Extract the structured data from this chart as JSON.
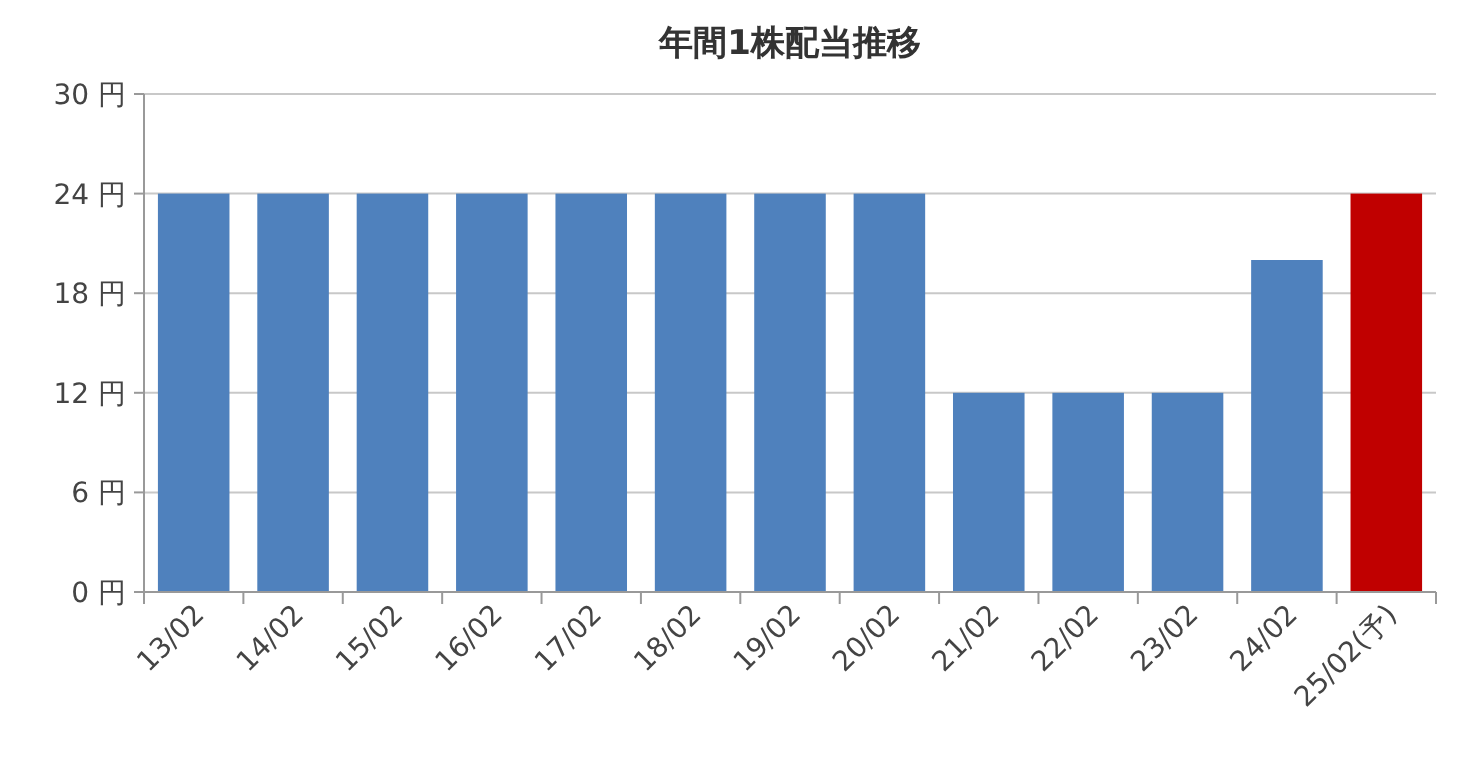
{
  "chart_data": {
    "type": "bar",
    "title": "年間1株配当推移",
    "categories": [
      "13/02",
      "14/02",
      "15/02",
      "16/02",
      "17/02",
      "18/02",
      "19/02",
      "20/02",
      "21/02",
      "22/02",
      "23/02",
      "24/02",
      "25/02(予)"
    ],
    "values": [
      24,
      24,
      24,
      24,
      24,
      24,
      24,
      24,
      12,
      12,
      12,
      20,
      24
    ],
    "colors": [
      "#4f81bd",
      "#4f81bd",
      "#4f81bd",
      "#4f81bd",
      "#4f81bd",
      "#4f81bd",
      "#4f81bd",
      "#4f81bd",
      "#4f81bd",
      "#4f81bd",
      "#4f81bd",
      "#4f81bd",
      "#c00000"
    ],
    "ylim": [
      0,
      30
    ],
    "yticks": [
      {
        "value": 0,
        "label": "0 円"
      },
      {
        "value": 6,
        "label": "6 円"
      },
      {
        "value": 12,
        "label": "12 円"
      },
      {
        "value": 18,
        "label": "18 円"
      },
      {
        "value": 24,
        "label": "24 円"
      },
      {
        "value": 30,
        "label": "30 円"
      }
    ],
    "grid": "y"
  }
}
